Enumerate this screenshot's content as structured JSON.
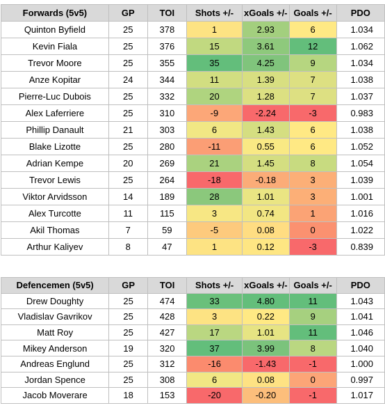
{
  "forwards": {
    "headers": [
      "Forwards (5v5)",
      "GP",
      "TOI",
      "Shots +/-",
      "xGoals +/-",
      "Goals +/-",
      "PDO"
    ],
    "rows": [
      [
        "Quinton Byfield",
        "25",
        "378",
        "1",
        "2.93",
        "6",
        "1.034"
      ],
      [
        "Kevin Fiala",
        "25",
        "376",
        "15",
        "3.61",
        "12",
        "1.062"
      ],
      [
        "Trevor Moore",
        "25",
        "355",
        "35",
        "4.25",
        "9",
        "1.034"
      ],
      [
        "Anze Kopitar",
        "24",
        "344",
        "11",
        "1.39",
        "7",
        "1.038"
      ],
      [
        "Pierre-Luc Dubois",
        "25",
        "332",
        "20",
        "1.28",
        "7",
        "1.037"
      ],
      [
        "Alex Laferriere",
        "25",
        "310",
        "-9",
        "-2.24",
        "-3",
        "0.983"
      ],
      [
        "Phillip Danault",
        "21",
        "303",
        "6",
        "1.43",
        "6",
        "1.038"
      ],
      [
        "Blake Lizotte",
        "25",
        "280",
        "-11",
        "0.55",
        "6",
        "1.052"
      ],
      [
        "Adrian Kempe",
        "20",
        "269",
        "21",
        "1.45",
        "8",
        "1.054"
      ],
      [
        "Trevor Lewis",
        "25",
        "264",
        "-18",
        "-0.18",
        "3",
        "1.039"
      ],
      [
        "Viktor Arvidsson",
        "14",
        "189",
        "28",
        "1.01",
        "3",
        "1.001"
      ],
      [
        "Alex Turcotte",
        "11",
        "115",
        "3",
        "0.74",
        "1",
        "1.016"
      ],
      [
        "Akil Thomas",
        "7",
        "59",
        "-5",
        "0.08",
        "0",
        "1.022"
      ],
      [
        "Arthur Kaliyev",
        "8",
        "47",
        "1",
        "0.12",
        "-3",
        "0.839"
      ]
    ],
    "colors": [
      [
        "#fde383",
        "#a3cf7e",
        "#ffe984"
      ],
      [
        "#c1d980",
        "#8ec97c",
        "#63be7b"
      ],
      [
        "#63be7b",
        "#80c47c",
        "#b6d680"
      ],
      [
        "#d2de81",
        "#d8df81",
        "#dde082"
      ],
      [
        "#afd47f",
        "#dce082",
        "#dde082"
      ],
      [
        "#fca778",
        "#f8696b",
        "#f8696b"
      ],
      [
        "#f1e784",
        "#d5de81",
        "#ffe984"
      ],
      [
        "#fb9e75",
        "#f9e984",
        "#ffe984"
      ],
      [
        "#aad27f",
        "#d4de81",
        "#c8db80"
      ],
      [
        "#f8696b",
        "#fbac78",
        "#fcaf77"
      ],
      [
        "#8bc87c",
        "#eae583",
        "#fcaf77"
      ],
      [
        "#f7e784",
        "#f2e683",
        "#fba375"
      ],
      [
        "#fdca7d",
        "#ffdd82",
        "#fb9170"
      ],
      [
        "#fde383",
        "#fee683",
        "#f8696b"
      ]
    ]
  },
  "defencemen": {
    "headers": [
      "Defencemen (5v5)",
      "GP",
      "TOI",
      "Shots +/-",
      "xGoals +/-",
      "Goals +/-",
      "PDO"
    ],
    "rows": [
      [
        "Drew Doughty",
        "25",
        "474",
        "33",
        "4.80",
        "11",
        "1.043"
      ],
      [
        "Vladislav Gavrikov",
        "25",
        "428",
        "3",
        "0.22",
        "9",
        "1.041"
      ],
      [
        "Matt Roy",
        "25",
        "427",
        "17",
        "1.01",
        "11",
        "1.046"
      ],
      [
        "Mikey Anderson",
        "19",
        "320",
        "37",
        "3.99",
        "8",
        "1.040"
      ],
      [
        "Andreas Englund",
        "25",
        "312",
        "-16",
        "-1.43",
        "-1",
        "1.000"
      ],
      [
        "Jordan Spence",
        "25",
        "308",
        "6",
        "0.08",
        "0",
        "0.997"
      ],
      [
        "Jacob Moverare",
        "18",
        "153",
        "-20",
        "-0.20",
        "-1",
        "1.017"
      ]
    ],
    "colors": [
      [
        "#6ac07b",
        "#63be7b",
        "#63be7b"
      ],
      [
        "#fde383",
        "#ffe984",
        "#a6d07f"
      ],
      [
        "#bad781",
        "#e6e483",
        "#63be7b"
      ],
      [
        "#63be7b",
        "#7bc37c",
        "#bad781"
      ],
      [
        "#fb8b6e",
        "#f8696b",
        "#f8696b"
      ],
      [
        "#f1e784",
        "#fee283",
        "#fca577"
      ],
      [
        "#f8696b",
        "#fcbe7b",
        "#f8696b"
      ]
    ]
  }
}
